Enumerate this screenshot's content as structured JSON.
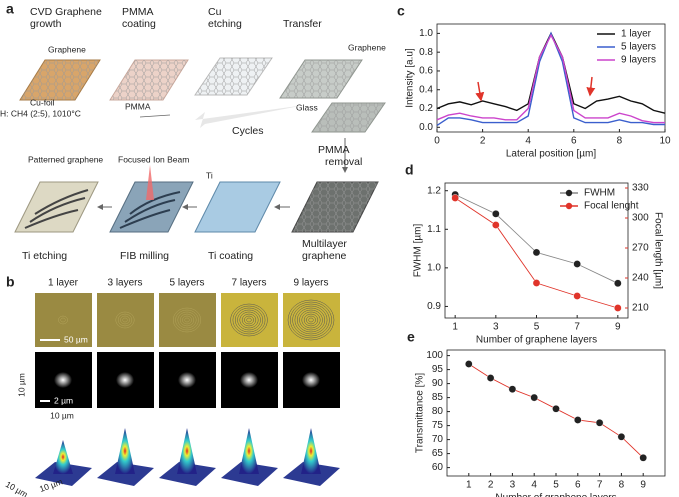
{
  "panel_a": {
    "label": "a",
    "steps": [
      [
        "CVD Graphene",
        "growth"
      ],
      [
        "PMMA",
        "coating"
      ],
      [
        "Cu",
        "etching"
      ],
      [
        "Transfer"
      ]
    ],
    "notes": {
      "graphene_1": "Graphene",
      "cu_foil": "Cu-foil",
      "conditions": "H: CH4 (2:5), 1010°C",
      "pmma": "PMMA",
      "graphene_2": "Graphene",
      "glass": "Glass",
      "cycles": "Cycles",
      "pmma_removal": [
        "PMMA",
        "removal"
      ],
      "patterned": "Patterned graphene",
      "fib": "Focused Ion Beam",
      "ti": "Ti"
    },
    "bottom_steps": [
      "Ti etching",
      "FIB milling",
      "Ti coating",
      [
        "Multilayer",
        "graphene"
      ]
    ]
  },
  "panel_b": {
    "label": "b",
    "columns": [
      "1 layer",
      "3 layers",
      "5 layers",
      "7 layers",
      "9 layers"
    ],
    "scale_photo": "50 µm",
    "scale_spot": "2 µm",
    "spot_height": "10 µm",
    "spot_width": "10 µm",
    "plot_axis_1": "10 µm",
    "plot_axis_2": "10 µm"
  },
  "chart_data": [
    {
      "type": "line",
      "panel": "c",
      "xlabel": "Lateral position [µm]",
      "ylabel": "Intensity [a.u]",
      "x": [
        0,
        0.5,
        1,
        1.5,
        2,
        2.5,
        3,
        3.5,
        4,
        4.5,
        5,
        5.5,
        6,
        6.5,
        7,
        7.5,
        8,
        8.5,
        9,
        9.5,
        10
      ],
      "xlim": [
        0,
        10
      ],
      "xticks": [
        0,
        2,
        4,
        6,
        8,
        10
      ],
      "ylim": [
        -0.05,
        1.1
      ],
      "yticks": [
        {
          "value": 0,
          "label": "0.0"
        },
        0.2,
        0.4,
        0.6,
        0.8,
        {
          "value": 1,
          "label": "1.0"
        }
      ],
      "legend": "upper right",
      "series": [
        {
          "name": "1 layer",
          "color": "#111111",
          "values": [
            0.2,
            0.25,
            0.27,
            0.24,
            0.28,
            0.25,
            0.22,
            0.18,
            0.25,
            0.75,
            1.0,
            0.75,
            0.25,
            0.2,
            0.28,
            0.3,
            0.33,
            0.28,
            0.25,
            0.18,
            0.15
          ]
        },
        {
          "name": "5 layers",
          "color": "#3a5fcd",
          "values": [
            0.02,
            0.1,
            0.1,
            0.08,
            0.05,
            0.05,
            0.05,
            0.05,
            0.12,
            0.7,
            1.0,
            0.7,
            0.1,
            0.05,
            0.05,
            0.05,
            0.08,
            0.05,
            0.05,
            0.03,
            0.03
          ]
        },
        {
          "name": "9 layers",
          "color": "#cc44cc",
          "values": [
            0.08,
            0.13,
            0.15,
            0.12,
            0.1,
            0.1,
            0.08,
            0.08,
            0.2,
            0.75,
            0.98,
            0.75,
            0.18,
            0.1,
            0.1,
            0.1,
            0.15,
            0.12,
            0.07,
            0.05,
            0.05
          ]
        }
      ]
    },
    {
      "type": "line",
      "panel": "d",
      "xlabel": "Number of graphene layers",
      "ylabel": "FWHM [µm]",
      "y2label": "Focal length [µm]",
      "y2color": "#e0342a",
      "x": [
        1,
        3,
        5,
        7,
        9
      ],
      "xlim": [
        0.5,
        9.5
      ],
      "xticks": [
        1,
        3,
        5,
        7,
        9
      ],
      "ylim": [
        0.87,
        1.22
      ],
      "yticks": [
        0.9,
        {
          "value": 1,
          "label": "1.0"
        },
        1.1,
        1.2
      ],
      "y2lim": [
        200,
        335
      ],
      "y2ticks": [
        210,
        240,
        270,
        300,
        330
      ],
      "legend": "upper right",
      "markers": true,
      "series": [
        {
          "name": "FWHM",
          "color": "#888888",
          "marker_color": "#222222",
          "values": [
            1.19,
            1.14,
            1.04,
            1.01,
            0.96
          ]
        },
        {
          "name": "Focal lenght",
          "color": "#e0342a",
          "marker_color": "#e0342a",
          "axis": "y2",
          "values": [
            320,
            293,
            235,
            222,
            210
          ]
        }
      ]
    },
    {
      "type": "line",
      "panel": "e",
      "xlabel": "Number of graphene layers",
      "ylabel": "Transmittance [%]",
      "x": [
        1,
        2,
        3,
        4,
        5,
        6,
        7,
        8,
        9
      ],
      "xlim": [
        0,
        10
      ],
      "xticks": [
        1,
        2,
        3,
        4,
        5,
        6,
        7,
        8,
        9
      ],
      "ylim": [
        57,
        102
      ],
      "yticks": [
        60,
        65,
        70,
        75,
        80,
        85,
        90,
        95,
        100
      ],
      "markers": true,
      "series": [
        {
          "color": "#e0342a",
          "marker_color": "#222222",
          "values": [
            97,
            92,
            88,
            85,
            81,
            77,
            76,
            71,
            63.5
          ]
        }
      ]
    }
  ]
}
